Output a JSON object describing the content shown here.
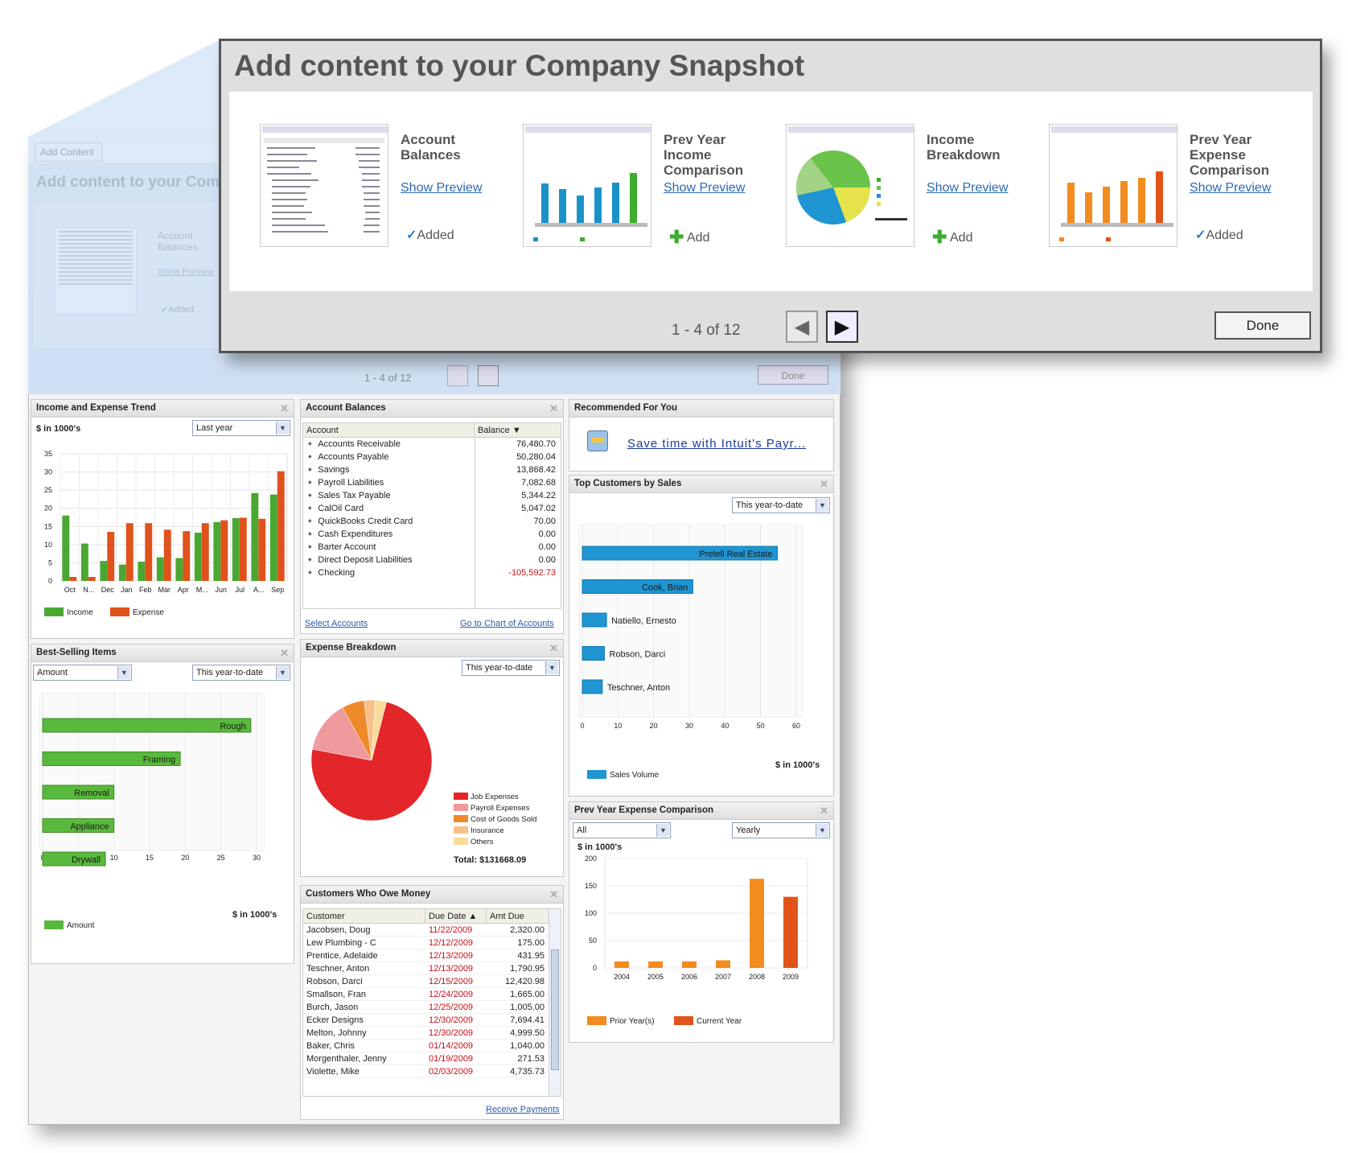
{
  "colors": {
    "income": "#4aa832",
    "expense": "#e0521c",
    "sales": "#1f95d2",
    "prior": "#f28c1e",
    "current": "#e2531a",
    "best": "#59b93c",
    "link": "#2a5ca8",
    "overdue": "#c6101b"
  },
  "background": {
    "add_content_button": "Add Content",
    "title": "Add content to your Com",
    "card_title": "Account Balances",
    "card_preview": "Show Preview",
    "card_added": "Added",
    "pager": "1 - 4 of 12",
    "done": "Done"
  },
  "modal": {
    "title": "Add content to your Company Snapshot",
    "cards": [
      {
        "title": "Account Balances",
        "preview": "Show Preview",
        "action": "Added",
        "state": "added"
      },
      {
        "title": "Prev Year Income Comparison",
        "preview": "Show Preview",
        "action": "Add",
        "state": "add"
      },
      {
        "title": "Income Breakdown",
        "preview": "Show Preview",
        "action": "Add",
        "state": "add"
      },
      {
        "title": "Prev Year Expense Comparison",
        "preview": "Show Preview",
        "action": "Added",
        "state": "added"
      }
    ],
    "pager": "1 - 4 of 12",
    "done": "Done",
    "prev_icon": "triangle-left-icon",
    "next_icon": "triangle-right-icon"
  },
  "income_expense": {
    "title": "Income and Expense Trend",
    "unit": "$ in 1000's",
    "range": "Last year",
    "legend": [
      "Income",
      "Expense"
    ],
    "chart_data": {
      "type": "bar",
      "categories": [
        "Oct",
        "N...",
        "Dec",
        "Jan",
        "Feb",
        "Mar",
        "Apr",
        "M...",
        "Jun",
        "Jul",
        "A...",
        "Sep"
      ],
      "series": [
        {
          "name": "Income",
          "values": [
            18,
            10.3,
            5.5,
            4.5,
            5.3,
            6.5,
            6.3,
            13.3,
            16.2,
            17.3,
            24.2,
            23.8
          ]
        },
        {
          "name": "Expense",
          "values": [
            1.1,
            1.1,
            13.5,
            15.9,
            15.9,
            14.1,
            13.7,
            15.9,
            16.7,
            17.4,
            17.1,
            30.2
          ]
        }
      ],
      "ylim": [
        0,
        35
      ],
      "yticks": [
        0,
        5,
        10,
        15,
        20,
        25,
        30,
        35
      ]
    }
  },
  "account_balances": {
    "title": "Account Balances",
    "col_account": "Account",
    "col_balance": "Balance",
    "rows": [
      {
        "name": "Accounts Receivable",
        "value": "76,480.70"
      },
      {
        "name": "Accounts Payable",
        "value": "50,280.04"
      },
      {
        "name": "Savings",
        "value": "13,868.42"
      },
      {
        "name": "Payroll Liabilities",
        "value": "7,082.68"
      },
      {
        "name": "Sales Tax Payable",
        "value": "5,344.22"
      },
      {
        "name": "CalOil Card",
        "value": "5,047.02"
      },
      {
        "name": "QuickBooks Credit Card",
        "value": "70.00"
      },
      {
        "name": "Cash Expenditures",
        "value": "0.00"
      },
      {
        "name": "Barter Account",
        "value": "0.00"
      },
      {
        "name": "Direct Deposit Liabilities",
        "value": "0.00"
      },
      {
        "name": "Checking",
        "value": "-105,592.73"
      }
    ],
    "select_link": "Select Accounts",
    "chart_link": "Go to Chart of Accounts"
  },
  "recommended": {
    "title": "Recommended For You",
    "link": "Save time with Intuit's Payr..."
  },
  "top_customers": {
    "title": "Top Customers by Sales",
    "range": "This year-to-date",
    "unit": "$ in 1000's",
    "legend": "Sales Volume",
    "chart_data": {
      "type": "bar",
      "orientation": "horizontal",
      "categories": [
        "Pretell Real Estate",
        "Cook, Brian",
        "Natiello, Ernesto",
        "Robson, Darci",
        "Teschner, Anton"
      ],
      "values": [
        54.7,
        31,
        6.8,
        6.2,
        5.6
      ],
      "xlim": [
        0,
        60
      ],
      "xticks": [
        0,
        10,
        20,
        30,
        40,
        50,
        60
      ]
    }
  },
  "best_selling": {
    "title": "Best-Selling Items",
    "metric": "Amount",
    "range": "This year-to-date",
    "unit": "$ in 1000's",
    "legend": "Amount",
    "chart_data": {
      "type": "bar",
      "orientation": "horizontal",
      "categories": [
        "Rough",
        "Framing",
        "Removal",
        "Appliance",
        "Drywall"
      ],
      "values": [
        29.2,
        19.3,
        10,
        10,
        8.8
      ],
      "xlim": [
        0,
        30
      ],
      "xticks": [
        0,
        5,
        10,
        15,
        20,
        25,
        30
      ]
    }
  },
  "expense_breakdown": {
    "title": "Expense Breakdown",
    "range": "This year-to-date",
    "total": "Total: $131668.09",
    "chart_data": {
      "type": "pie",
      "categories": [
        "Job Expenses",
        "Payroll Expenses",
        "Cost of Goods Sold",
        "Insurance",
        "Others"
      ],
      "values": [
        74,
        14,
        6,
        3,
        3
      ],
      "colors": [
        "#e3262a",
        "#ef9a9d",
        "#ef8a2b",
        "#f7c08a",
        "#f9dc9a"
      ]
    }
  },
  "customers_owe": {
    "title": "Customers Who Owe Money",
    "cols": [
      "Customer",
      "Due Date",
      "Amt Due"
    ],
    "rows": [
      [
        "Jacobsen, Doug",
        "11/22/2009",
        "2,320.00"
      ],
      [
        "Lew Plumbing - C",
        "12/12/2009",
        "175.00"
      ],
      [
        "Prentice, Adelaide",
        "12/13/2009",
        "431.95"
      ],
      [
        "Teschner, Anton",
        "12/13/2009",
        "1,790.95"
      ],
      [
        "Robson, Darci",
        "12/15/2009",
        "12,420.98"
      ],
      [
        "Smallson, Fran",
        "12/24/2009",
        "1,665.00"
      ],
      [
        "Burch, Jason",
        "12/25/2009",
        "1,005.00"
      ],
      [
        "Ecker Designs",
        "12/30/2009",
        "7,694.41"
      ],
      [
        "Melton, Johnny",
        "12/30/2009",
        "4,999.50"
      ],
      [
        "Baker, Chris",
        "01/14/2009",
        "1,040.00"
      ],
      [
        "Morgenthaler, Jenny",
        "01/19/2009",
        "271.53"
      ],
      [
        "Violette, Mike",
        "02/03/2009",
        "4,735.73"
      ]
    ],
    "link": "Receive Payments"
  },
  "prev_expense": {
    "title": "Prev Year Expense Comparison",
    "filter": "All",
    "period": "Yearly",
    "unit": "$ in 1000's",
    "legend": [
      "Prior Year(s)",
      "Current Year"
    ],
    "chart_data": {
      "type": "bar",
      "categories": [
        "2004",
        "2005",
        "2006",
        "2007",
        "2008",
        "2009"
      ],
      "values": [
        12,
        12,
        12,
        14,
        163,
        130
      ],
      "series_kind": [
        "prior",
        "prior",
        "prior",
        "prior",
        "prior",
        "current"
      ],
      "ylim": [
        0,
        200
      ],
      "yticks": [
        0,
        50,
        100,
        150,
        200
      ]
    }
  }
}
